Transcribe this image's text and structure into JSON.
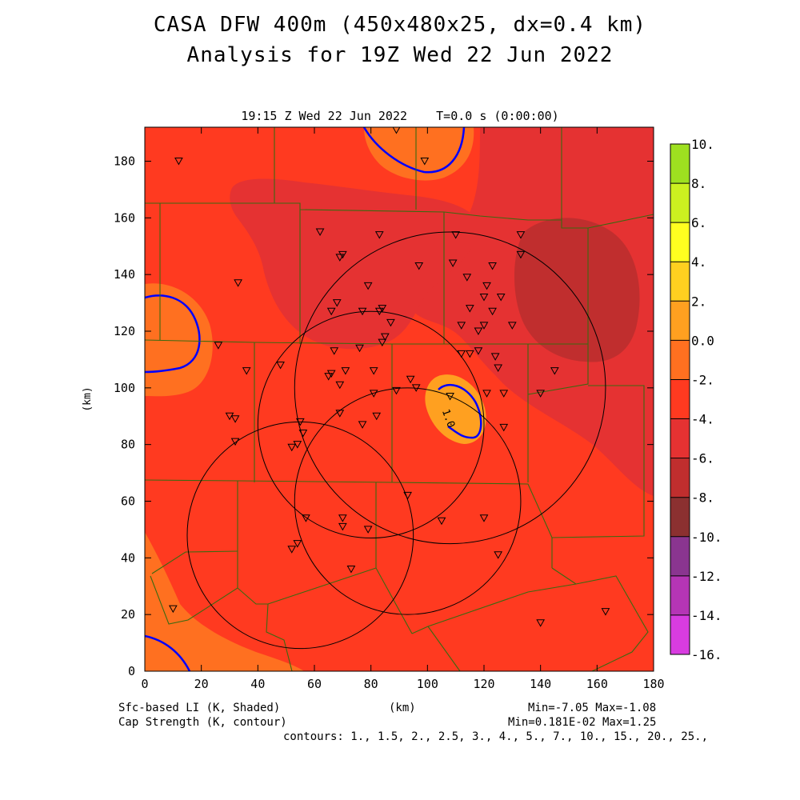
{
  "header": {
    "title_line1": "CASA DFW 400m (450x480x25, dx=0.4 km)",
    "title_line2": "Analysis for 19Z Wed 22 Jun 2022",
    "valid_time": "19:15 Z Wed 22 Jun 2022    T=0.0 s (0:00:00)"
  },
  "axes": {
    "x_label": "(km)",
    "y_label": "(km)",
    "x_ticks": [
      "0",
      "20",
      "40",
      "60",
      "80",
      "100",
      "120",
      "140",
      "160",
      "180"
    ],
    "y_ticks": [
      "0",
      "20",
      "40",
      "60",
      "80",
      "100",
      "120",
      "140",
      "160",
      "180"
    ],
    "x_range": [
      0,
      180
    ],
    "y_range": [
      0,
      192
    ]
  },
  "colorbar": {
    "labels": [
      "10.",
      "8.",
      "6.",
      "4.",
      "2.",
      "0.0",
      "-2.",
      "-4.",
      "-6.",
      "-8.",
      "-10.",
      "-12.",
      "-14.",
      "-16."
    ],
    "colors": [
      "#9ee020",
      "#ccf020",
      "#ffff20",
      "#ffd020",
      "#ffa020",
      "#ff7020",
      "#ff3a20",
      "#e53232",
      "#c02e2e",
      "#8b3030",
      "#8a3590",
      "#b535b5",
      "#d83ce0"
    ]
  },
  "footer": {
    "left_line1": "Sfc-based LI (K, Shaded)",
    "left_line2": "Cap Strength (K, contour)",
    "center": "(km)",
    "right_line1": "Min=-7.05 Max=-1.08",
    "right_line2": "Min=0.181E-02 Max=1.25",
    "contours": "contours: 1., 1.5, 2., 2.5, 3., 4., 5., 7., 10., 15., 20., 25.,"
  },
  "contour_label": "1.0",
  "field_colors": {
    "base": "#ff3a20",
    "warm": "#ff7020",
    "warmer": "#ffa020",
    "stable1": "#e53232",
    "stable2": "#c02e2e",
    "contour": "#0000ff",
    "county_lines": "#3a6a10"
  },
  "radars": [
    {
      "name": "radar-1",
      "cx": 108,
      "cy": 100,
      "r": 55
    },
    {
      "name": "radar-2",
      "cx": 80,
      "cy": 87,
      "r": 40
    },
    {
      "name": "radar-3",
      "cx": 93,
      "cy": 60,
      "r": 40
    },
    {
      "name": "radar-4",
      "cx": 55,
      "cy": 48,
      "r": 40
    }
  ],
  "stations": [
    [
      12,
      180
    ],
    [
      89,
      191
    ],
    [
      99,
      180
    ],
    [
      33,
      137
    ],
    [
      62,
      155
    ],
    [
      70,
      147
    ],
    [
      69,
      146
    ],
    [
      83,
      154
    ],
    [
      79,
      136
    ],
    [
      97,
      143
    ],
    [
      110,
      154
    ],
    [
      133,
      154
    ],
    [
      133,
      147
    ],
    [
      109,
      144
    ],
    [
      123,
      143
    ],
    [
      114,
      139
    ],
    [
      121,
      136
    ],
    [
      120,
      132
    ],
    [
      126,
      132
    ],
    [
      115,
      128
    ],
    [
      66,
      127
    ],
    [
      68,
      130
    ],
    [
      77,
      127
    ],
    [
      83,
      127
    ],
    [
      84,
      128
    ],
    [
      123,
      127
    ],
    [
      130,
      122
    ],
    [
      112,
      122
    ],
    [
      120,
      122
    ],
    [
      118,
      120
    ],
    [
      87,
      123
    ],
    [
      85,
      118
    ],
    [
      67,
      113
    ],
    [
      76,
      114
    ],
    [
      84,
      116
    ],
    [
      112,
      112
    ],
    [
      118,
      113
    ],
    [
      115,
      112
    ],
    [
      124,
      111
    ],
    [
      125,
      107
    ],
    [
      26,
      115
    ],
    [
      36,
      106
    ],
    [
      48,
      108
    ],
    [
      66,
      105
    ],
    [
      71,
      106
    ],
    [
      65,
      104
    ],
    [
      69,
      101
    ],
    [
      81,
      106
    ],
    [
      94,
      103
    ],
    [
      96,
      100
    ],
    [
      89,
      99
    ],
    [
      81,
      98
    ],
    [
      108,
      97
    ],
    [
      121,
      98
    ],
    [
      127,
      98
    ],
    [
      140,
      98
    ],
    [
      145,
      106
    ],
    [
      30,
      90
    ],
    [
      32,
      89
    ],
    [
      69,
      91
    ],
    [
      82,
      90
    ],
    [
      77,
      87
    ],
    [
      127,
      86
    ],
    [
      55,
      88
    ],
    [
      56,
      84
    ],
    [
      54,
      80
    ],
    [
      52,
      79
    ],
    [
      32,
      81
    ],
    [
      93,
      62
    ],
    [
      57,
      54
    ],
    [
      70,
      54
    ],
    [
      70,
      51
    ],
    [
      79,
      50
    ],
    [
      105,
      53
    ],
    [
      120,
      54
    ],
    [
      54,
      45
    ],
    [
      52,
      43
    ],
    [
      73,
      36
    ],
    [
      125,
      41
    ],
    [
      10,
      22
    ],
    [
      140,
      17
    ],
    [
      163,
      21
    ]
  ]
}
